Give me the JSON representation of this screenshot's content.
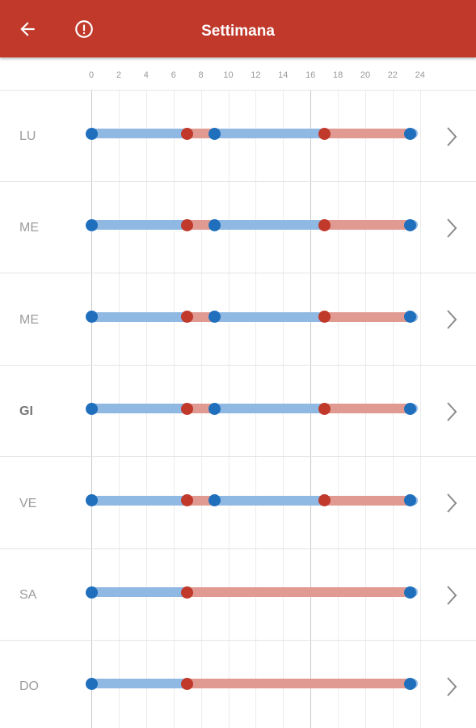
{
  "header": {
    "title": "Settimana",
    "back_icon": "arrow-left-icon",
    "info_icon": "info-circle-icon",
    "background": "#c0392b"
  },
  "axis": {
    "ticks": [
      "0",
      "2",
      "4",
      "6",
      "8",
      "10",
      "12",
      "14",
      "16",
      "18",
      "20",
      "22",
      "24"
    ],
    "current_hour": 16
  },
  "colors": {
    "comfort": "#1f6fbd",
    "comfort_bar": "#8fb8e3",
    "economy": "#c0392b",
    "economy_bar": "#e09a92"
  },
  "days": [
    {
      "label": "LU",
      "today": false,
      "points": [
        0,
        7,
        9,
        17,
        23.3
      ],
      "segments": [
        [
          0,
          7,
          "blue"
        ],
        [
          7,
          9,
          "red"
        ],
        [
          9,
          17,
          "blue"
        ],
        [
          17,
          23.3,
          "red"
        ],
        [
          23.3,
          24,
          "blue"
        ]
      ]
    },
    {
      "label": "ME",
      "today": false,
      "points": [
        0,
        7,
        9,
        17,
        23.3
      ],
      "segments": [
        [
          0,
          7,
          "blue"
        ],
        [
          7,
          9,
          "red"
        ],
        [
          9,
          17,
          "blue"
        ],
        [
          17,
          23.3,
          "red"
        ],
        [
          23.3,
          24,
          "blue"
        ]
      ]
    },
    {
      "label": "ME",
      "today": false,
      "points": [
        0,
        7,
        9,
        17,
        23.3
      ],
      "segments": [
        [
          0,
          7,
          "blue"
        ],
        [
          7,
          9,
          "red"
        ],
        [
          9,
          17,
          "blue"
        ],
        [
          17,
          23.3,
          "red"
        ],
        [
          23.3,
          24,
          "blue"
        ]
      ]
    },
    {
      "label": "GI",
      "today": true,
      "points": [
        0,
        7,
        9,
        17,
        23.3
      ],
      "segments": [
        [
          0,
          7,
          "blue"
        ],
        [
          7,
          9,
          "red"
        ],
        [
          9,
          17,
          "blue"
        ],
        [
          17,
          23.3,
          "red"
        ],
        [
          23.3,
          24,
          "blue"
        ]
      ]
    },
    {
      "label": "VE",
      "today": false,
      "points": [
        0,
        7,
        9,
        17,
        23.3
      ],
      "segments": [
        [
          0,
          7,
          "blue"
        ],
        [
          7,
          9,
          "red"
        ],
        [
          9,
          17,
          "blue"
        ],
        [
          17,
          23.3,
          "red"
        ],
        [
          23.3,
          24,
          "blue"
        ]
      ]
    },
    {
      "label": "SA",
      "today": false,
      "points": [
        0,
        7,
        23.3
      ],
      "segments": [
        [
          0,
          7,
          "blue"
        ],
        [
          7,
          23.3,
          "red"
        ],
        [
          23.3,
          24,
          "blue"
        ]
      ]
    },
    {
      "label": "DO",
      "today": false,
      "points": [
        0,
        7,
        23.3
      ],
      "segments": [
        [
          0,
          7,
          "blue"
        ],
        [
          7,
          23.3,
          "red"
        ],
        [
          23.3,
          24,
          "blue"
        ]
      ]
    }
  ]
}
